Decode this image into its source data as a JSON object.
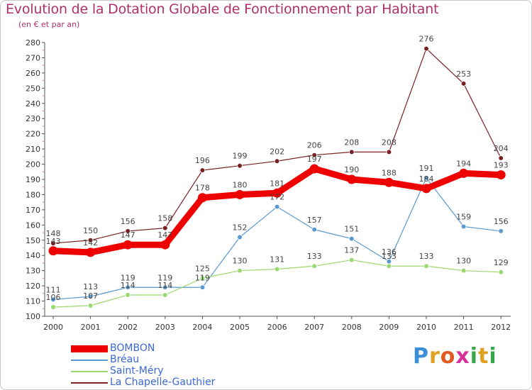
{
  "header": {
    "title": "Evolution de la Dotation Globale de Fonctionnement par Habitant",
    "subtitle": "(en € et par an)"
  },
  "brand": {
    "logo_text": "Proxiti"
  },
  "chart_data": {
    "type": "line",
    "title": "Evolution de la Dotation Globale de Fonctionnement par Habitant",
    "subtitle": "(en € et par an)",
    "xlabel": "",
    "ylabel": "",
    "x": [
      "2000",
      "2001",
      "2002",
      "2003",
      "2004",
      "2005",
      "2006",
      "2007",
      "2008",
      "2009",
      "2010",
      "2011",
      "2012"
    ],
    "ylim": [
      100,
      280
    ],
    "yticks": [
      100,
      110,
      120,
      130,
      140,
      150,
      160,
      170,
      180,
      190,
      200,
      210,
      220,
      230,
      240,
      250,
      260,
      270,
      280
    ],
    "grid": false,
    "legend_position": "bottom-left",
    "series": [
      {
        "name": "BOMBON",
        "color": "#ee0000",
        "values": [
          143,
          142,
          147,
          147,
          178,
          180,
          181,
          197,
          190,
          188,
          184,
          194,
          193
        ]
      },
      {
        "name": "Bréau",
        "color": "#5a9ad0",
        "values": [
          111,
          113,
          119,
          119,
          119,
          152,
          172,
          157,
          151,
          136,
          191,
          159,
          156
        ]
      },
      {
        "name": "Saint-Méry",
        "color": "#9ad870",
        "values": [
          106,
          107,
          114,
          114,
          125,
          130,
          131,
          133,
          137,
          133,
          133,
          130,
          129
        ]
      },
      {
        "name": "La Chapelle-Gauthier",
        "color": "#7a2020",
        "values": [
          148,
          150,
          156,
          158,
          196,
          199,
          202,
          206,
          208,
          208,
          276,
          253,
          204
        ]
      }
    ]
  }
}
